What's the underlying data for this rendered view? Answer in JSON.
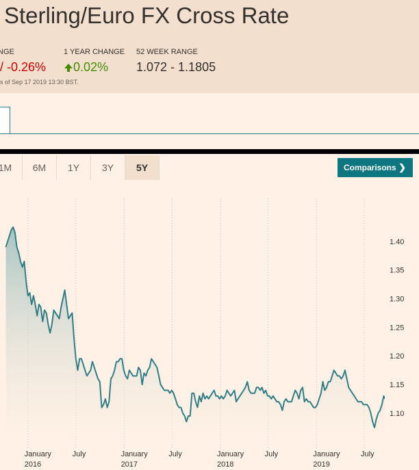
{
  "header": {
    "title": "Sterling/Euro FX Cross Rate",
    "day_change_label": "NGE",
    "day_change_value": "/ -0.26%",
    "year_change_label": "1 YEAR CHANGE",
    "year_change_value": "0.02%",
    "range_label": "52 WEEK RANGE",
    "range_value": "1.072 - 1.1805",
    "timestamp": "s of Sep 17 2019 13:30 BST."
  },
  "tabs": [
    {
      "label": "1M",
      "active": false
    },
    {
      "label": "6M",
      "active": false
    },
    {
      "label": "1Y",
      "active": false
    },
    {
      "label": "3Y",
      "active": false
    },
    {
      "label": "5Y",
      "active": true
    }
  ],
  "comparisons_label": "Comparisons",
  "comparisons_chevron": "❯",
  "colors": {
    "line": "#2e7d86",
    "fill_top": "#9fbfbd",
    "fill_bottom": "#fff1e5",
    "negative": "#cc0000",
    "positive": "#458b00",
    "button": "#0d7680"
  },
  "chart_data": {
    "type": "area",
    "title": "",
    "xlabel": "",
    "ylabel": "",
    "ylim": [
      1.045,
      1.475
    ],
    "xlim": [
      "2015-09-17",
      "2019-09-17"
    ],
    "y_ticks": [
      1.1,
      1.15,
      1.2,
      1.25,
      1.3,
      1.35,
      1.4
    ],
    "y_tick_labels": [
      "1.10",
      "1.15",
      "1.20",
      "1.25",
      "1.30",
      "1.35",
      "1.40"
    ],
    "x_ticks": [
      {
        "date": "2016-01-01",
        "label": "January",
        "year": "2016"
      },
      {
        "date": "2016-07-01",
        "label": "July",
        "year": ""
      },
      {
        "date": "2017-01-01",
        "label": "January",
        "year": "2017"
      },
      {
        "date": "2017-07-01",
        "label": "July",
        "year": ""
      },
      {
        "date": "2018-01-01",
        "label": "January",
        "year": "2018"
      },
      {
        "date": "2018-07-01",
        "label": "July",
        "year": ""
      },
      {
        "date": "2019-01-01",
        "label": "January",
        "year": "2019"
      },
      {
        "date": "2019-07-01",
        "label": "July",
        "year": ""
      }
    ],
    "grid": true,
    "series": [
      {
        "points": [
          [
            "2015-10-09",
            1.39
          ],
          [
            "2015-10-30",
            1.42
          ],
          [
            "2015-11-06",
            1.425
          ],
          [
            "2015-11-13",
            1.415
          ],
          [
            "2015-11-20",
            1.39
          ],
          [
            "2015-11-27",
            1.38
          ],
          [
            "2015-12-04",
            1.365
          ],
          [
            "2015-12-11",
            1.355
          ],
          [
            "2015-12-18",
            1.365
          ],
          [
            "2015-12-25",
            1.33
          ],
          [
            "2016-01-01",
            1.305
          ],
          [
            "2016-01-08",
            1.31
          ],
          [
            "2016-01-15",
            1.29
          ],
          [
            "2016-01-22",
            1.305
          ],
          [
            "2016-01-29",
            1.29
          ],
          [
            "2016-02-05",
            1.27
          ],
          [
            "2016-02-12",
            1.29
          ],
          [
            "2016-02-19",
            1.285
          ],
          [
            "2016-02-26",
            1.26
          ],
          [
            "2016-03-04",
            1.28
          ],
          [
            "2016-03-11",
            1.275
          ],
          [
            "2016-03-18",
            1.255
          ],
          [
            "2016-03-25",
            1.24
          ],
          [
            "2016-04-01",
            1.255
          ],
          [
            "2016-04-08",
            1.28
          ],
          [
            "2016-04-15",
            1.275
          ],
          [
            "2016-04-22",
            1.27
          ],
          [
            "2016-04-29",
            1.265
          ],
          [
            "2016-05-06",
            1.285
          ],
          [
            "2016-05-13",
            1.3
          ],
          [
            "2016-05-20",
            1.315
          ],
          [
            "2016-05-27",
            1.29
          ],
          [
            "2016-06-03",
            1.265
          ],
          [
            "2016-06-10",
            1.27
          ],
          [
            "2016-06-17",
            1.275
          ],
          [
            "2016-06-24",
            1.23
          ],
          [
            "2016-07-01",
            1.195
          ],
          [
            "2016-07-08",
            1.175
          ],
          [
            "2016-07-15",
            1.195
          ],
          [
            "2016-07-22",
            1.195
          ],
          [
            "2016-07-29",
            1.185
          ],
          [
            "2016-08-05",
            1.175
          ],
          [
            "2016-08-12",
            1.165
          ],
          [
            "2016-08-19",
            1.17
          ],
          [
            "2016-08-26",
            1.175
          ],
          [
            "2016-09-02",
            1.19
          ],
          [
            "2016-09-09",
            1.18
          ],
          [
            "2016-09-16",
            1.17
          ],
          [
            "2016-09-23",
            1.16
          ],
          [
            "2016-09-30",
            1.155
          ],
          [
            "2016-10-07",
            1.11
          ],
          [
            "2016-10-14",
            1.115
          ],
          [
            "2016-10-21",
            1.125
          ],
          [
            "2016-10-28",
            1.11
          ],
          [
            "2016-11-04",
            1.12
          ],
          [
            "2016-11-11",
            1.16
          ],
          [
            "2016-11-18",
            1.165
          ],
          [
            "2016-11-25",
            1.175
          ],
          [
            "2016-12-02",
            1.19
          ],
          [
            "2016-12-09",
            1.19
          ],
          [
            "2016-12-16",
            1.195
          ],
          [
            "2016-12-23",
            1.195
          ],
          [
            "2016-12-30",
            1.175
          ],
          [
            "2017-01-06",
            1.165
          ],
          [
            "2017-01-13",
            1.16
          ],
          [
            "2017-01-20",
            1.175
          ],
          [
            "2017-01-27",
            1.17
          ],
          [
            "2017-02-03",
            1.165
          ],
          [
            "2017-02-10",
            1.165
          ],
          [
            "2017-02-17",
            1.165
          ],
          [
            "2017-02-24",
            1.18
          ],
          [
            "2017-03-03",
            1.175
          ],
          [
            "2017-03-10",
            1.15
          ],
          [
            "2017-03-17",
            1.17
          ],
          [
            "2017-03-24",
            1.165
          ],
          [
            "2017-03-31",
            1.175
          ],
          [
            "2017-04-07",
            1.18
          ],
          [
            "2017-04-14",
            1.195
          ],
          [
            "2017-04-21",
            1.19
          ],
          [
            "2017-04-28",
            1.185
          ],
          [
            "2017-05-05",
            1.18
          ],
          [
            "2017-05-12",
            1.165
          ],
          [
            "2017-05-19",
            1.15
          ],
          [
            "2017-05-26",
            1.145
          ],
          [
            "2017-06-02",
            1.14
          ],
          [
            "2017-06-09",
            1.14
          ],
          [
            "2017-06-16",
            1.14
          ],
          [
            "2017-06-23",
            1.135
          ],
          [
            "2017-06-30",
            1.14
          ],
          [
            "2017-07-07",
            1.135
          ],
          [
            "2017-07-14",
            1.125
          ],
          [
            "2017-07-21",
            1.115
          ],
          [
            "2017-07-28",
            1.11
          ],
          [
            "2017-08-04",
            1.11
          ],
          [
            "2017-08-11",
            1.1
          ],
          [
            "2017-08-18",
            1.095
          ],
          [
            "2017-08-25",
            1.085
          ],
          [
            "2017-09-01",
            1.095
          ],
          [
            "2017-09-08",
            1.095
          ],
          [
            "2017-09-15",
            1.135
          ],
          [
            "2017-09-22",
            1.135
          ],
          [
            "2017-09-29",
            1.12
          ],
          [
            "2017-10-06",
            1.11
          ],
          [
            "2017-10-13",
            1.13
          ],
          [
            "2017-10-20",
            1.12
          ],
          [
            "2017-10-27",
            1.135
          ],
          [
            "2017-11-03",
            1.125
          ],
          [
            "2017-11-10",
            1.13
          ],
          [
            "2017-11-17",
            1.125
          ],
          [
            "2017-11-24",
            1.13
          ],
          [
            "2017-12-01",
            1.135
          ],
          [
            "2017-12-08",
            1.14
          ],
          [
            "2017-12-15",
            1.13
          ],
          [
            "2017-12-22",
            1.13
          ],
          [
            "2017-12-29",
            1.125
          ],
          [
            "2018-01-05",
            1.13
          ],
          [
            "2018-01-12",
            1.125
          ],
          [
            "2018-01-19",
            1.13
          ],
          [
            "2018-01-26",
            1.14
          ],
          [
            "2018-02-02",
            1.135
          ],
          [
            "2018-02-09",
            1.13
          ],
          [
            "2018-02-16",
            1.135
          ],
          [
            "2018-02-23",
            1.14
          ],
          [
            "2018-03-02",
            1.12
          ],
          [
            "2018-03-09",
            1.125
          ],
          [
            "2018-03-16",
            1.13
          ],
          [
            "2018-03-23",
            1.135
          ],
          [
            "2018-03-30",
            1.14
          ],
          [
            "2018-04-06",
            1.145
          ],
          [
            "2018-04-13",
            1.155
          ],
          [
            "2018-04-20",
            1.14
          ],
          [
            "2018-04-27",
            1.135
          ],
          [
            "2018-05-04",
            1.135
          ],
          [
            "2018-05-11",
            1.135
          ],
          [
            "2018-05-18",
            1.145
          ],
          [
            "2018-05-25",
            1.145
          ],
          [
            "2018-06-01",
            1.14
          ],
          [
            "2018-06-08",
            1.145
          ],
          [
            "2018-06-15",
            1.135
          ],
          [
            "2018-06-22",
            1.14
          ],
          [
            "2018-06-29",
            1.13
          ],
          [
            "2018-07-06",
            1.13
          ],
          [
            "2018-07-13",
            1.125
          ],
          [
            "2018-07-20",
            1.13
          ],
          [
            "2018-07-27",
            1.125
          ],
          [
            "2018-08-03",
            1.12
          ],
          [
            "2018-08-10",
            1.12
          ],
          [
            "2018-08-17",
            1.115
          ],
          [
            "2018-08-24",
            1.105
          ],
          [
            "2018-08-31",
            1.12
          ],
          [
            "2018-09-07",
            1.125
          ],
          [
            "2018-09-14",
            1.12
          ],
          [
            "2018-09-21",
            1.12
          ],
          [
            "2018-09-28",
            1.12
          ],
          [
            "2018-10-05",
            1.13
          ],
          [
            "2018-10-12",
            1.14
          ],
          [
            "2018-10-19",
            1.135
          ],
          [
            "2018-10-26",
            1.125
          ],
          [
            "2018-11-02",
            1.14
          ],
          [
            "2018-11-09",
            1.145
          ],
          [
            "2018-11-16",
            1.12
          ],
          [
            "2018-11-23",
            1.125
          ],
          [
            "2018-11-30",
            1.12
          ],
          [
            "2018-12-07",
            1.12
          ],
          [
            "2018-12-14",
            1.115
          ],
          [
            "2018-12-21",
            1.11
          ],
          [
            "2018-12-28",
            1.11
          ],
          [
            "2019-01-04",
            1.115
          ],
          [
            "2019-01-11",
            1.125
          ],
          [
            "2019-01-18",
            1.135
          ],
          [
            "2019-01-25",
            1.155
          ],
          [
            "2019-02-01",
            1.14
          ],
          [
            "2019-02-08",
            1.145
          ],
          [
            "2019-02-15",
            1.155
          ],
          [
            "2019-02-22",
            1.155
          ],
          [
            "2019-03-01",
            1.165
          ],
          [
            "2019-03-08",
            1.175
          ],
          [
            "2019-03-15",
            1.17
          ],
          [
            "2019-03-22",
            1.165
          ],
          [
            "2019-03-29",
            1.165
          ],
          [
            "2019-04-05",
            1.16
          ],
          [
            "2019-04-12",
            1.165
          ],
          [
            "2019-04-19",
            1.175
          ],
          [
            "2019-04-26",
            1.16
          ],
          [
            "2019-05-03",
            1.145
          ],
          [
            "2019-05-10",
            1.14
          ],
          [
            "2019-05-17",
            1.135
          ],
          [
            "2019-05-24",
            1.13
          ],
          [
            "2019-05-31",
            1.125
          ],
          [
            "2019-06-07",
            1.12
          ],
          [
            "2019-06-14",
            1.12
          ],
          [
            "2019-06-21",
            1.12
          ],
          [
            "2019-06-28",
            1.115
          ],
          [
            "2019-07-05",
            1.115
          ],
          [
            "2019-07-12",
            1.115
          ],
          [
            "2019-07-19",
            1.11
          ],
          [
            "2019-07-26",
            1.1
          ],
          [
            "2019-08-02",
            1.085
          ],
          [
            "2019-08-09",
            1.075
          ],
          [
            "2019-08-16",
            1.09
          ],
          [
            "2019-08-23",
            1.1
          ],
          [
            "2019-08-30",
            1.105
          ],
          [
            "2019-09-06",
            1.115
          ],
          [
            "2019-09-13",
            1.13
          ],
          [
            "2019-09-17",
            1.125
          ]
        ]
      }
    ]
  }
}
